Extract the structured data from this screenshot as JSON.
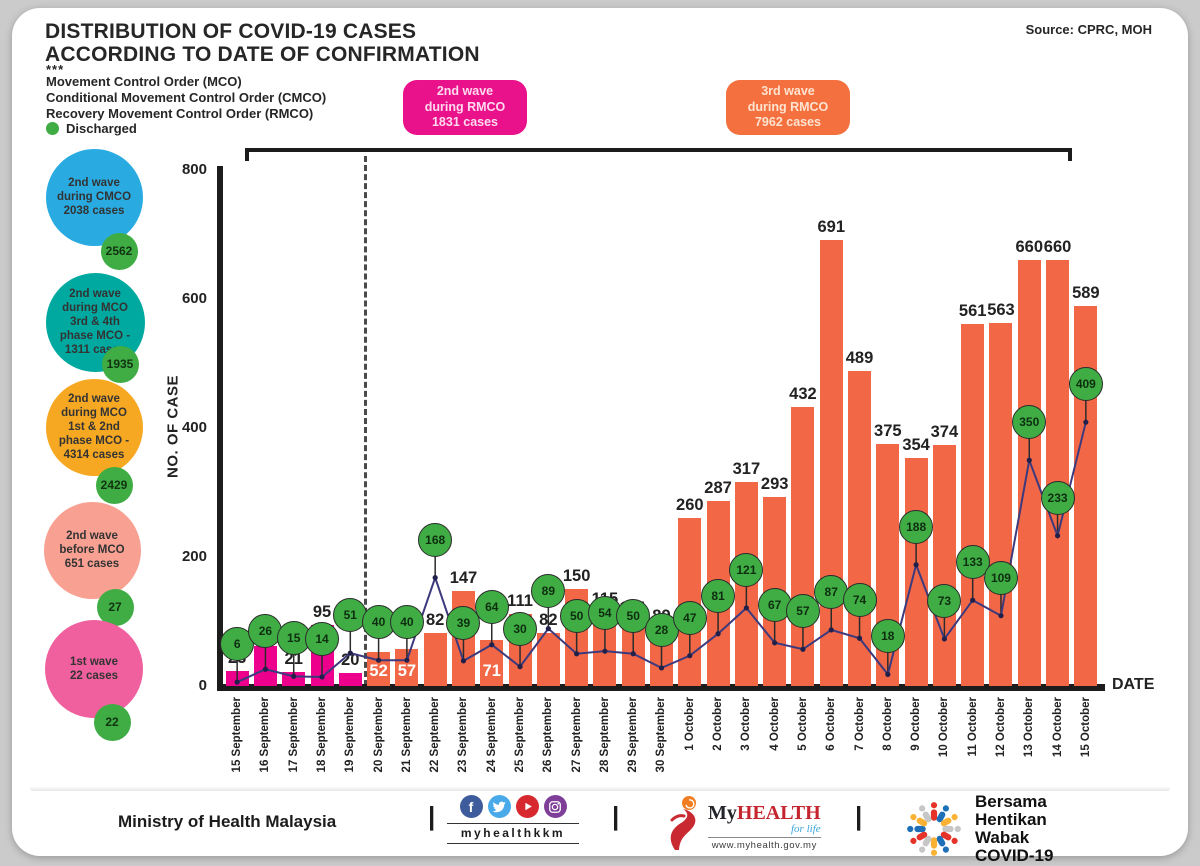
{
  "header": {
    "title": "DISTRIBUTION OF COVID-19 CASES\nACCORDING TO DATE OF CONFIRMATION",
    "footnote_marker": "***",
    "mco_text": "Movement Control Order (MCO)\nConditional Movement Control Order (CMCO)\nRecovery Movement Control Order (RMCO)",
    "discharged_label": "Discharged",
    "source": "Source: CPRC, MOH"
  },
  "annotations": {
    "wave2": {
      "text": "2nd wave\nduring RMCO\n1831 cases",
      "color": "#e9128b"
    },
    "wave3": {
      "text": "3rd wave\nduring RMCO\n7962 cases",
      "color": "#f4713f"
    }
  },
  "bubbles": [
    {
      "text": "2nd wave\nduring CMCO\n2038 cases",
      "discharged": "2562",
      "color": "#29abe2"
    },
    {
      "text": "2nd wave\nduring MCO\n3rd & 4th\nphase MCO -\n1311 cases",
      "discharged": "1935",
      "color": "#00a9a0"
    },
    {
      "text": "2nd wave\nduring MCO\n1st & 2nd\nphase MCO -\n4314 cases",
      "discharged": "2429",
      "color": "#f7a823"
    },
    {
      "text": "2nd wave\nbefore MCO\n651 cases",
      "discharged": "27",
      "color": "#f8a193"
    },
    {
      "text": "1st wave\n22 cases",
      "discharged": "22",
      "color": "#f0609e"
    }
  ],
  "badge_color": "#3fac44",
  "chart_data": {
    "type": "bar+line",
    "title": "DISTRIBUTION OF COVID-19 CASES ACCORDING TO DATE OF CONFIRMATION",
    "xlabel": "DATE",
    "ylabel": "NO. OF CASE",
    "ylim": [
      0,
      800
    ],
    "yticks": [
      800,
      600,
      400,
      200,
      0
    ],
    "grid": false,
    "categories": [
      "15 September",
      "16 September",
      "17 September",
      "18 September",
      "19 September",
      "20 September",
      "21 September",
      "22 September",
      "23 September",
      "24 September",
      "25 September",
      "26 September",
      "27 September",
      "28 September",
      "29 September",
      "30 September",
      "1 October",
      "2 October",
      "3 October",
      "4 October",
      "5 October",
      "6 October",
      "7 October",
      "8 October",
      "9 October",
      "10 October",
      "11 October",
      "12 October",
      "13 October",
      "14 October",
      "15 October"
    ],
    "series": [
      {
        "name": "Confirmed cases",
        "values": [
          23,
          62,
          21,
          95,
          20,
          52,
          57,
          82,
          147,
          71,
          111,
          82,
          150,
          115,
          101,
          89,
          260,
          287,
          317,
          293,
          432,
          691,
          489,
          375,
          354,
          374,
          561,
          563,
          660,
          660,
          589
        ]
      },
      {
        "name": "Discharged",
        "values": [
          6,
          26,
          15,
          14,
          51,
          40,
          40,
          168,
          39,
          64,
          30,
          89,
          50,
          54,
          50,
          28,
          47,
          81,
          121,
          67,
          57,
          87,
          74,
          18,
          188,
          73,
          133,
          109,
          350,
          233,
          409
        ]
      }
    ],
    "bar_colors": {
      "pink_count": 5,
      "pink": "#ec008c",
      "orange": "#f26847"
    },
    "inside_label_indices": [
      5,
      6,
      9
    ],
    "wave_divider_after_index": 4,
    "line_color": "#3c3a7d"
  },
  "footer": {
    "ministry": "Ministry of Health Malaysia",
    "separator": "|",
    "handle": "myhealthkkm",
    "social_colors": {
      "facebook": "#3e5b9b",
      "twitter": "#4aa9e9",
      "youtube": "#d7282f",
      "instagram": "#7f3f98"
    },
    "facebook_glyph": "f",
    "myhealth": {
      "name_prefix": "My",
      "name_rest": "HEALTH",
      "tagline": "for life",
      "url": "www.myhealth.gov.my"
    },
    "campaign_text": "Bersama\nHentikan\nWabak\nCOVID-19"
  }
}
